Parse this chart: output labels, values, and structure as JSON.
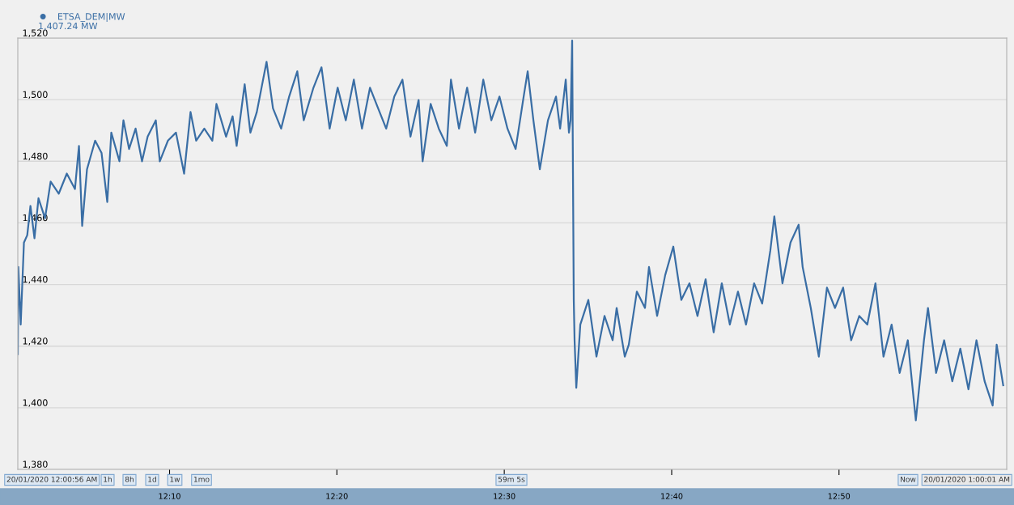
{
  "chart_data": {
    "type": "line",
    "x": [
      12.0156,
      12.0161,
      12.0185,
      12.0217,
      12.025,
      12.0282,
      12.0322,
      12.0362,
      12.0427,
      12.0483,
      12.0564,
      12.0644,
      12.0725,
      12.0765,
      12.0797,
      12.0845,
      12.0926,
      12.099,
      12.1047,
      12.1087,
      12.1168,
      12.1208,
      12.1264,
      12.1329,
      12.1393,
      12.1449,
      12.153,
      12.157,
      12.1651,
      12.1731,
      12.1812,
      12.1876,
      12.1932,
      12.2013,
      12.2093,
      12.2134,
      12.223,
      12.2295,
      12.2335,
      12.2415,
      12.2472,
      12.2536,
      12.2633,
      12.2697,
      12.2778,
      12.2858,
      12.2939,
      12.3003,
      12.31,
      12.318,
      12.3261,
      12.3341,
      12.3422,
      12.3502,
      12.3583,
      12.3663,
      12.3744,
      12.3824,
      12.3905,
      12.3986,
      12.4066,
      12.4147,
      12.4187,
      12.4267,
      12.4348,
      12.4428,
      12.4469,
      12.4549,
      12.463,
      12.471,
      12.4791,
      12.4871,
      12.4952,
      12.5032,
      12.5113,
      12.5193,
      12.5233,
      12.529,
      12.5354,
      12.5435,
      12.5515,
      12.5556,
      12.5612,
      12.5644,
      12.566,
      12.5676,
      12.5684,
      12.5692,
      12.57,
      12.5717,
      12.5757,
      12.5837,
      12.5918,
      12.5998,
      12.6079,
      12.6119,
      12.62,
      12.624,
      12.632,
      12.6401,
      12.6441,
      12.6522,
      12.6602,
      12.6683,
      12.6763,
      12.6844,
      12.6924,
      12.7005,
      12.7085,
      12.7166,
      12.7246,
      12.7327,
      12.7407,
      12.7488,
      12.7568,
      12.7649,
      12.7689,
      12.777,
      12.785,
      12.7931,
      12.7971,
      12.8052,
      12.8132,
      12.8213,
      12.8293,
      12.8374,
      12.8454,
      12.8535,
      12.8615,
      12.8696,
      12.8776,
      12.8857,
      12.8937,
      12.9018,
      12.9098,
      12.9179,
      12.9219,
      12.93,
      12.938,
      12.9461,
      12.9541,
      12.9622,
      12.9702,
      12.9783,
      12.9863,
      12.9903,
      12.9968
    ],
    "series": [
      {
        "name": "ETSA_DEM|MW",
        "color": "#3a6ea5",
        "values": [
          1417.4,
          1445.7,
          1427,
          1453.6,
          1456,
          1465.5,
          1455,
          1468,
          1461.5,
          1473.4,
          1469.5,
          1476,
          1471,
          1485,
          1459,
          1477.4,
          1486.7,
          1482.7,
          1466.8,
          1489.3,
          1480,
          1493.3,
          1484,
          1490.6,
          1480,
          1488,
          1493.3,
          1480,
          1486.7,
          1489.3,
          1476,
          1496,
          1486.7,
          1490.6,
          1486.7,
          1498.6,
          1488,
          1494.6,
          1485,
          1505,
          1489.3,
          1496,
          1512.3,
          1497.2,
          1490.6,
          1501,
          1509.2,
          1493.3,
          1503.9,
          1510.5,
          1490.6,
          1503.9,
          1493.3,
          1506.5,
          1490.6,
          1503.9,
          1497.2,
          1490.6,
          1501,
          1506.5,
          1488,
          1499.9,
          1480,
          1498.6,
          1490.6,
          1485,
          1506.5,
          1490.6,
          1503.9,
          1489.3,
          1506.5,
          1493.3,
          1501,
          1490.6,
          1484,
          1501,
          1509.2,
          1493.3,
          1477.4,
          1493.3,
          1501,
          1490.6,
          1506.5,
          1489.3,
          1493.3,
          1519.2,
          1476,
          1435,
          1421.9,
          1406.5,
          1427,
          1435,
          1416.6,
          1429.8,
          1421.9,
          1432.4,
          1416.6,
          1420.5,
          1437.7,
          1432.4,
          1445.7,
          1429.8,
          1443,
          1452.3,
          1435,
          1440.4,
          1429.8,
          1441.7,
          1424.5,
          1440.4,
          1427,
          1437.7,
          1427,
          1440.4,
          1433.8,
          1451,
          1462.1,
          1440.4,
          1453.6,
          1459.4,
          1445.7,
          1432.4,
          1416.6,
          1439,
          1432.4,
          1439,
          1421.9,
          1429.8,
          1427,
          1440.4,
          1416.6,
          1427,
          1411.3,
          1421.9,
          1395.9,
          1421.9,
          1432.4,
          1411.3,
          1421.9,
          1408.6,
          1419.2,
          1406,
          1421.9,
          1408.6,
          1400.7,
          1420.5,
          1407.3
        ]
      }
    ],
    "xlim": [
      12.0156,
      13.0003
    ],
    "xticks": [
      {
        "value": 12.1667,
        "label": "12:10"
      },
      {
        "value": 12.3333,
        "label": "12:20"
      },
      {
        "value": 12.5,
        "label": "12:30"
      },
      {
        "value": 12.6667,
        "label": "12:40"
      },
      {
        "value": 12.8333,
        "label": "12:50"
      }
    ],
    "ylim": [
      1380,
      1520
    ],
    "yticks": [
      {
        "value": 1380,
        "label": "1,380"
      },
      {
        "value": 1400,
        "label": "1,400"
      },
      {
        "value": 1420,
        "label": "1,420"
      },
      {
        "value": 1440,
        "label": "1,440"
      },
      {
        "value": 1460,
        "label": "1,460"
      },
      {
        "value": 1480,
        "label": "1,480"
      },
      {
        "value": 1500,
        "label": "1,500"
      },
      {
        "value": 1520,
        "label": "1,520"
      }
    ],
    "grid": "y",
    "legend": "top left",
    "marker": "none",
    "line_style": "solid",
    "annotations": [
      "1,407.24 MW",
      "20/01/2020 12:00:56 AM",
      "1h",
      "8h",
      "1d",
      "1w",
      "1mo",
      "59m 5s",
      "Now",
      "20/01/2020 1:00:01 AM"
    ]
  }
}
